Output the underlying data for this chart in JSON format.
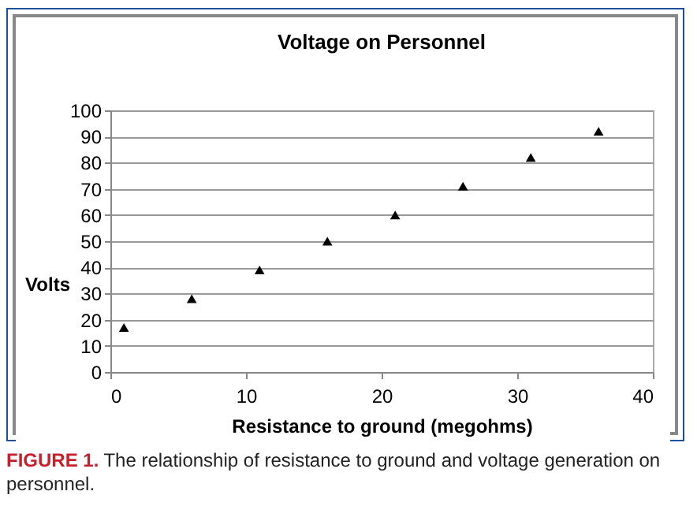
{
  "chart_data": {
    "type": "scatter",
    "title": "Voltage on Personnel",
    "xlabel": "Resistance to ground  (megohms)",
    "ylabel": "Volts",
    "x": [
      1,
      6,
      11,
      16,
      21,
      26,
      31,
      36
    ],
    "series": [
      {
        "color": "#000000",
        "values": [
          17,
          28,
          39,
          50,
          60,
          71,
          82,
          92
        ]
      }
    ],
    "xlim": [
      0,
      40
    ],
    "xticks": [
      0,
      10,
      20,
      30,
      40
    ],
    "ylim": [
      0,
      100
    ],
    "yticks": [
      0,
      10,
      20,
      30,
      40,
      50,
      60,
      70,
      80,
      90,
      100
    ],
    "grid": "y",
    "marker": "triangle",
    "annotations": [
      "FIGURE 1.",
      "The relationship of resistance to ground and voltage generation on personnel."
    ]
  }
}
